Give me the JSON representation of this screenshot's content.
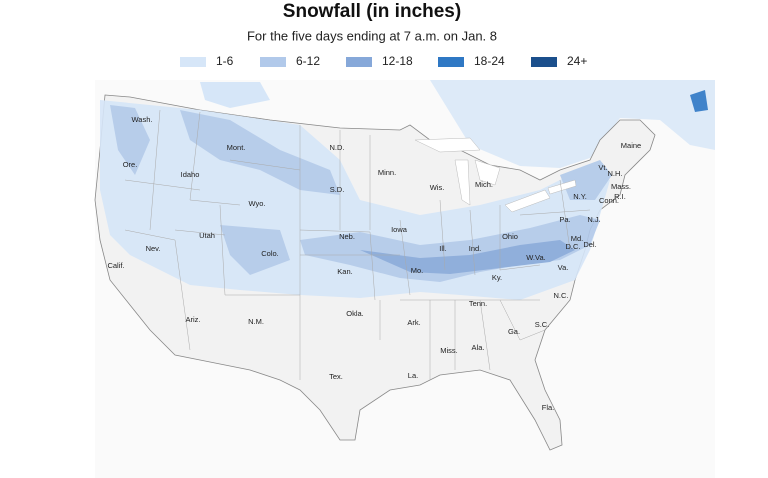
{
  "header": {
    "title": "Snowfall (in inches)",
    "subtitle": "For the five days ending at 7 a.m. on Jan. 8"
  },
  "legend": [
    {
      "label": "1-6",
      "color": "#d6e6f8"
    },
    {
      "label": "6-12",
      "color": "#b1c9ea"
    },
    {
      "label": "12-18",
      "color": "#86a8d9"
    },
    {
      "label": "18-24",
      "color": "#2f78c4"
    },
    {
      "label": "24+",
      "color": "#1b4f8c"
    }
  ],
  "states": [
    "Wash.",
    "Mont.",
    "N.D.",
    "Minn.",
    "Maine",
    "Ore.",
    "Idaho",
    "S.D.",
    "Wis.",
    "Mich.",
    "Vt.",
    "N.H.",
    "Mass.",
    "R.I.",
    "Conn.",
    "N.Y.",
    "Wyo.",
    "Pa.",
    "N.J.",
    "Iowa",
    "Neb.",
    "Utah",
    "Nev.",
    "Ill.",
    "Ind.",
    "Ohio",
    "Md.",
    "Del.",
    "D.C.",
    "W.Va.",
    "Colo.",
    "Calif.",
    "Kan.",
    "Mo.",
    "Va.",
    "Ky.",
    "Tenn.",
    "N.C.",
    "Ariz.",
    "N.M.",
    "Okla.",
    "Ark.",
    "S.C.",
    "Ga.",
    "Ala.",
    "Miss.",
    "Tex.",
    "La.",
    "Fla."
  ]
}
